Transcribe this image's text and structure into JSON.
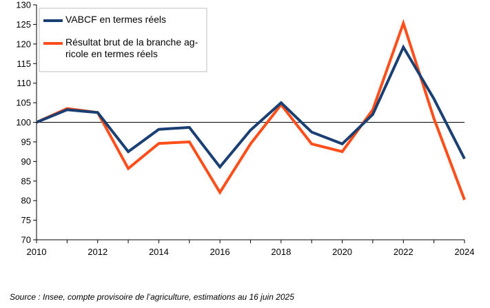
{
  "chart_data": {
    "type": "line",
    "x": [
      2010,
      2011,
      2012,
      2013,
      2014,
      2015,
      2016,
      2017,
      2018,
      2019,
      2020,
      2021,
      2022,
      2023,
      2024
    ],
    "series": [
      {
        "name": "VABCF en termes réels",
        "legend_lines": [
          "VABCF en termes réels"
        ],
        "color": "#1a3f73",
        "values": [
          100,
          103.2,
          102.5,
          92.5,
          98.2,
          98.7,
          88.6,
          98.0,
          105.0,
          97.5,
          94.5,
          102.0,
          119.2,
          106.0,
          90.7
        ]
      },
      {
        "name": "Résultat brut de la branche agricole en termes réels",
        "legend_lines": [
          "Résultat brut de la branche ag-",
          "ricole en termes réels"
        ],
        "color": "#ff4e1a",
        "values": [
          100,
          103.5,
          102.5,
          88.2,
          94.6,
          95.0,
          82.1,
          94.5,
          104.5,
          94.5,
          92.5,
          103.2,
          125.3,
          101.0,
          80.2
        ]
      }
    ],
    "xlim": [
      2010,
      2024
    ],
    "ylim": [
      70,
      130
    ],
    "x_ticks": [
      "2010",
      "2012",
      "2014",
      "2016",
      "2018",
      "2020",
      "2022",
      "2024"
    ],
    "y_ticks": [
      "70",
      "75",
      "80",
      "85",
      "90",
      "95",
      "100",
      "105",
      "110",
      "115",
      "120",
      "125",
      "130"
    ],
    "reference_line": 100,
    "grid": false,
    "legend_position": "top-left"
  },
  "source": "Source : Insee, compte provisoire de l’agriculture, estimations au 16 juin 2025"
}
